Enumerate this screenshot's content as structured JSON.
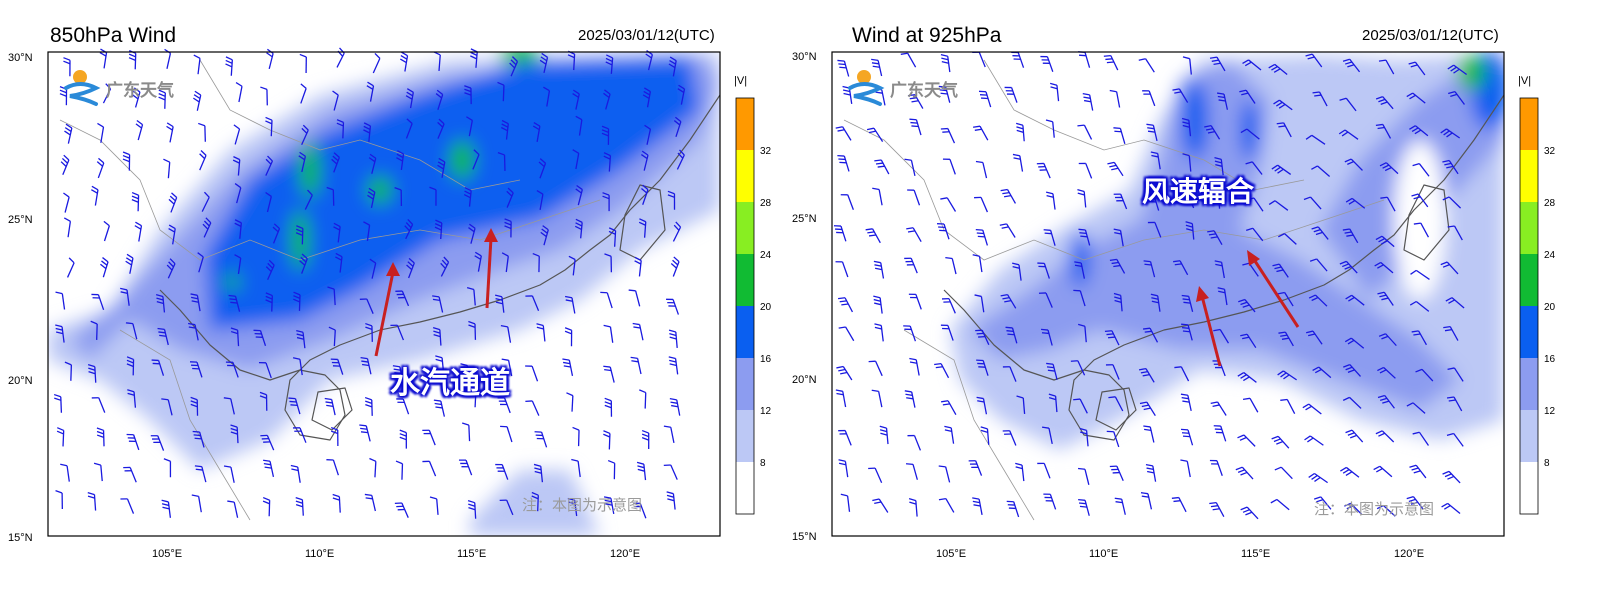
{
  "panels": [
    {
      "title": "850hPa Wind",
      "timestamp": "2025/03/01/12(UTC)",
      "annotation": "水汽通道",
      "note": "注：本图为示意图",
      "logo_text": "广东天气"
    },
    {
      "title": "Wind at 925hPa",
      "timestamp": "2025/03/01/12(UTC)",
      "annotation": "风速辐合",
      "note": "注：本图为示意图",
      "logo_text": "广东天气"
    }
  ],
  "axes": {
    "lat_ticks": [
      "30°N",
      "25°N",
      "20°N",
      "15°N"
    ],
    "lon_ticks": [
      "105°E",
      "110°E",
      "115°E",
      "120°E"
    ],
    "lat_range": [
      15,
      30
    ],
    "lon_range": [
      101,
      123
    ]
  },
  "colorbar": {
    "label": "|V|",
    "ticks": [
      "32",
      "28",
      "24",
      "20",
      "16",
      "12",
      "8"
    ],
    "colors": [
      "#ff9900",
      "#ffff00",
      "#88ee22",
      "#11bb33",
      "#0a5ff0",
      "#8c9cf0",
      "#bcc8f5",
      "#ffffff"
    ]
  },
  "colors": {
    "barb": "#1a1ae0",
    "arrow": "#c82020",
    "coast": "#555555"
  }
}
